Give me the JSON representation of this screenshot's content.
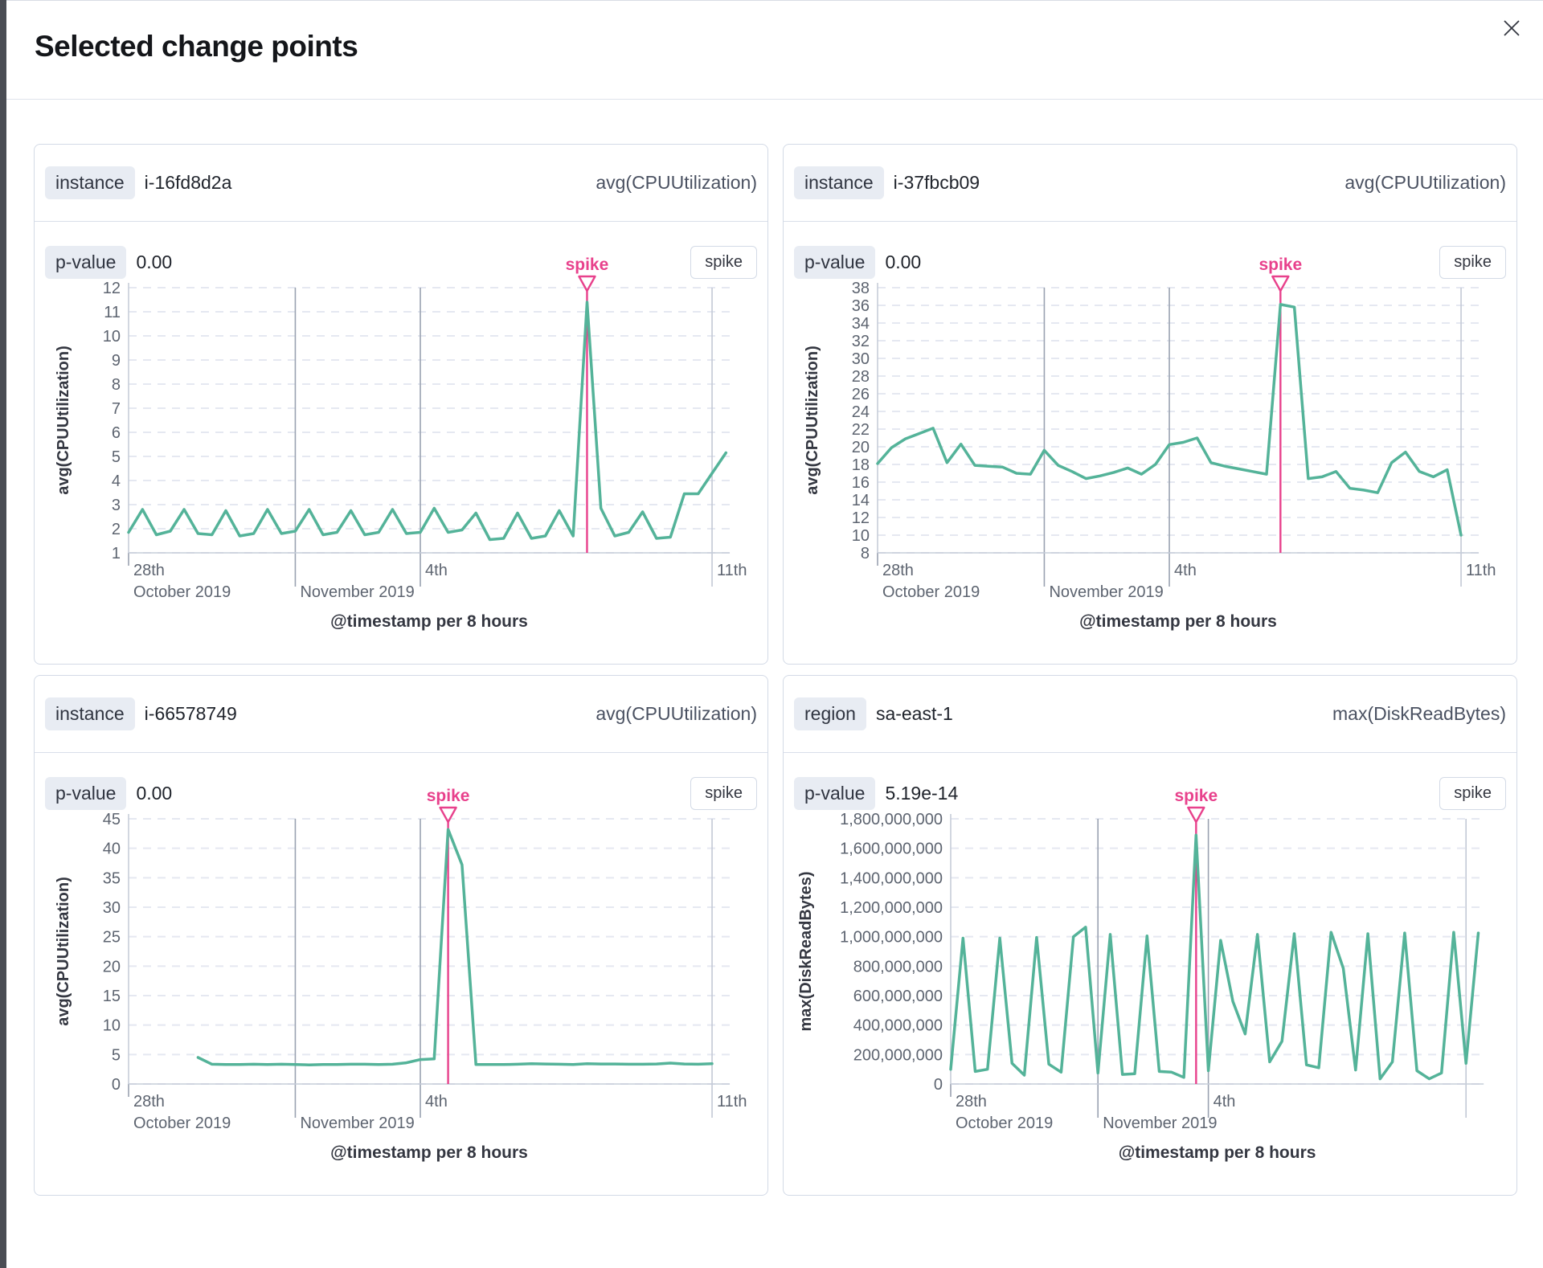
{
  "modal": {
    "title": "Selected change points",
    "close_icon": "close"
  },
  "colors": {
    "line_green": "#54b399",
    "accent_pink": "#e8418c",
    "badge_bg": "#e8ecf3",
    "card_border": "#d3dae6",
    "h_gridline": "#e5e8f1",
    "axis_line": "#c6cdd9",
    "major_gridline": "#9aa2b1",
    "minor_gridline": "#c3c9d5",
    "tick_text": "#5d6470",
    "axis_title_text": "#343741"
  },
  "cards": [
    {
      "field_label": "instance",
      "field_value": "i-16fd8d2a",
      "metric": "avg(CPUUtilization)",
      "p_label": "p-value",
      "p_value": "0.00",
      "type_badge": "spike"
    },
    {
      "field_label": "instance",
      "field_value": "i-37fbcb09",
      "metric": "avg(CPUUtilization)",
      "p_label": "p-value",
      "p_value": "0.00",
      "type_badge": "spike"
    },
    {
      "field_label": "instance",
      "field_value": "i-66578749",
      "metric": "avg(CPUUtilization)",
      "p_label": "p-value",
      "p_value": "0.00",
      "type_badge": "spike"
    },
    {
      "field_label": "region",
      "field_value": "sa-east-1",
      "metric": "max(DiskReadBytes)",
      "p_label": "p-value",
      "p_value": "5.19e-14",
      "type_badge": "spike"
    }
  ],
  "chart_data": [
    {
      "type": "line",
      "xlabel": "@timestamp per 8 hours",
      "ylabel": "avg(CPUUtilization)",
      "bucket_hours": 8,
      "ylim": [
        1,
        12
      ],
      "y_step": 1,
      "y_format": "int",
      "x_ticks": [
        {
          "bucket": 0,
          "day": "28th",
          "month": "October 2019",
          "line": "tick"
        },
        {
          "bucket": 12,
          "day": "",
          "month": "November 2019",
          "line": "major"
        },
        {
          "bucket": 21,
          "day": "4th",
          "month": "",
          "line": "major"
        },
        {
          "bucket": 42,
          "day": "11th",
          "month": "",
          "line": "minor"
        }
      ],
      "annotation": {
        "label": "spike",
        "bucket": 33
      },
      "values": [
        1.85,
        2.8,
        1.75,
        1.9,
        2.8,
        1.8,
        1.75,
        2.75,
        1.7,
        1.8,
        2.8,
        1.8,
        1.9,
        2.8,
        1.75,
        1.85,
        2.75,
        1.75,
        1.85,
        2.8,
        1.8,
        1.85,
        2.85,
        1.85,
        1.95,
        2.65,
        1.55,
        1.6,
        2.65,
        1.6,
        1.7,
        2.75,
        1.7,
        11.4,
        2.85,
        1.7,
        1.85,
        2.7,
        1.6,
        1.65,
        3.45,
        3.45,
        4.3,
        5.15
      ]
    },
    {
      "type": "line",
      "xlabel": "@timestamp per 8 hours",
      "ylabel": "avg(CPUUtilization)",
      "bucket_hours": 8,
      "ylim": [
        8,
        38
      ],
      "y_step": 2,
      "y_format": "int",
      "x_ticks": [
        {
          "bucket": 0,
          "day": "28th",
          "month": "October 2019",
          "line": "tick"
        },
        {
          "bucket": 12,
          "day": "",
          "month": "November 2019",
          "line": "major"
        },
        {
          "bucket": 21,
          "day": "4th",
          "month": "",
          "line": "major"
        },
        {
          "bucket": 42,
          "day": "11th",
          "month": "",
          "line": "minor"
        }
      ],
      "annotation": {
        "label": "spike",
        "bucket": 29
      },
      "values": [
        18.1,
        19.9,
        20.9,
        21.5,
        22.1,
        18.2,
        20.3,
        17.9,
        17.8,
        17.7,
        17.0,
        16.9,
        19.6,
        17.9,
        17.2,
        16.4,
        16.7,
        17.1,
        17.6,
        16.9,
        18.0,
        20.25,
        20.5,
        21.0,
        18.2,
        17.8,
        17.5,
        17.2,
        16.9,
        36.1,
        35.8,
        16.4,
        16.6,
        17.2,
        15.3,
        15.1,
        14.8,
        18.2,
        19.4,
        17.2,
        16.6,
        17.4,
        10.0
      ]
    },
    {
      "type": "line",
      "xlabel": "@timestamp per 8 hours",
      "ylabel": "avg(CPUUtilization)",
      "bucket_hours": 8,
      "ylim": [
        0,
        45
      ],
      "y_step": 5,
      "y_format": "int",
      "x_ticks": [
        {
          "bucket": 0,
          "day": "28th",
          "month": "October 2019",
          "line": "tick"
        },
        {
          "bucket": 12,
          "day": "",
          "month": "November 2019",
          "line": "major"
        },
        {
          "bucket": 21,
          "day": "4th",
          "month": "",
          "line": "major"
        },
        {
          "bucket": 42,
          "day": "11th",
          "month": "",
          "line": "minor"
        }
      ],
      "annotation": {
        "label": "spike",
        "bucket": 23
      },
      "values": [
        null,
        null,
        null,
        null,
        null,
        4.5,
        3.35,
        3.3,
        3.3,
        3.35,
        3.3,
        3.35,
        3.3,
        3.25,
        3.3,
        3.3,
        3.35,
        3.35,
        3.3,
        3.35,
        3.6,
        4.15,
        4.25,
        43.2,
        37.2,
        3.3,
        3.3,
        3.3,
        3.35,
        3.45,
        3.4,
        3.35,
        3.3,
        3.45,
        3.4,
        3.4,
        3.35,
        3.35,
        3.4,
        3.55,
        3.4,
        3.35,
        3.45
      ]
    },
    {
      "type": "line",
      "xlabel": "@timestamp per 8 hours",
      "ylabel": "max(DiskReadBytes)",
      "bucket_hours": 8,
      "ylim": [
        0,
        1800000000
      ],
      "y_step": 200000000,
      "y_format": "comma",
      "x_ticks": [
        {
          "bucket": 0,
          "day": "28th",
          "month": "October 2019",
          "line": "tick"
        },
        {
          "bucket": 12,
          "day": "",
          "month": "November 2019",
          "line": "major"
        },
        {
          "bucket": 21,
          "day": "4th",
          "month": "",
          "line": "major"
        },
        {
          "bucket": 42,
          "day": "",
          "month": "",
          "line": "minor"
        }
      ],
      "annotation": {
        "label": "spike",
        "bucket": 20
      },
      "values": [
        100000000,
        990000000,
        85000000,
        100000000,
        990000000,
        140000000,
        60000000,
        995000000,
        135000000,
        80000000,
        1000000000,
        1065000000,
        75000000,
        1015000000,
        65000000,
        70000000,
        1005000000,
        85000000,
        80000000,
        45000000,
        1690000000,
        90000000,
        975000000,
        560000000,
        340000000,
        1015000000,
        150000000,
        290000000,
        1020000000,
        130000000,
        110000000,
        1030000000,
        785000000,
        95000000,
        1020000000,
        35000000,
        150000000,
        1025000000,
        90000000,
        35000000,
        75000000,
        1030000000,
        140000000,
        1025000000
      ]
    }
  ]
}
